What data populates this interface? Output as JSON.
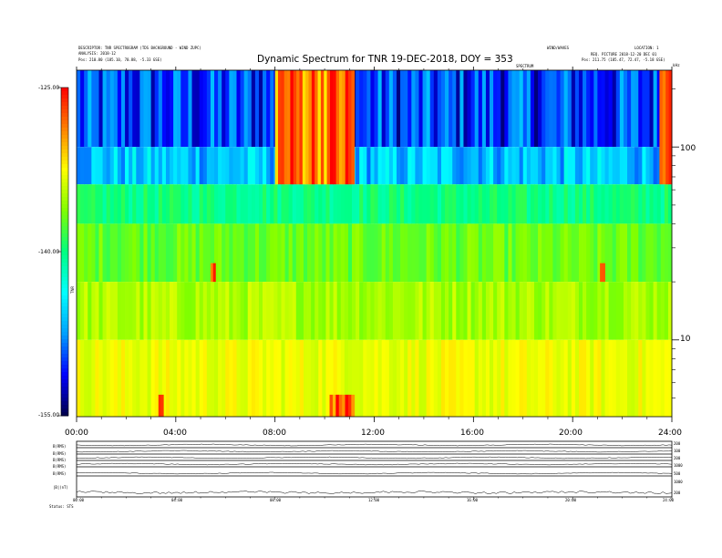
{
  "header": {
    "left_line1": "DESCRIPTOR: TNR SPECTROGRAM (TDS BACKGROUND - WIND ZUPC)",
    "left_line2": "ANALYSIS: 2018-12",
    "left_line3": "Pos: 210.80 (185.10, 70.88, -5.33 GSE)",
    "center_small_1": "WIND/WAVES",
    "center_small_2": "SPECTRUM",
    "right_line1": "LOCATION: 1",
    "right_line2": "REQ. PICTURE 2018-12-20 DEC 01",
    "right_line3": "Pos: 211.75 (185.47, 72.47, -5.18 GSE)"
  },
  "chart_data": {
    "type": "heatmap",
    "title": "Dynamic Spectrum for TNR 19-DEC-2018, DOY = 353",
    "x_ticks": [
      "00:00",
      "04:00",
      "08:00",
      "12:00",
      "16:00",
      "20:00",
      "24:00"
    ],
    "x_range_hours": [
      0,
      24
    ],
    "y_right_ticks": [
      "100",
      "10"
    ],
    "y_right_tick_values": [
      100,
      10
    ],
    "y_range_log": [
      4,
      250
    ],
    "y_right_top_label": "kHz",
    "colorbar": {
      "ticks": [
        "-125.00",
        "-140.00",
        "-155.00"
      ],
      "tick_values": [
        -125,
        -140,
        -155
      ],
      "range": [
        -155,
        -125
      ],
      "label": "TNR",
      "colors": [
        "#00004a",
        "#0000ff",
        "#00a0ff",
        "#00ffff",
        "#00ff80",
        "#80ff00",
        "#ffff00",
        "#ff8000",
        "#ff0000"
      ]
    },
    "bands": [
      {
        "f_top": 250,
        "f_bottom": 100,
        "level": -150,
        "noise": 4
      },
      {
        "f_top": 100,
        "f_bottom": 64,
        "level": -146,
        "noise": 3
      },
      {
        "f_top": 64,
        "f_bottom": 40,
        "level": -140,
        "noise": 1.5
      },
      {
        "f_top": 40,
        "f_bottom": 20,
        "level": -137,
        "noise": 1.5
      },
      {
        "f_top": 20,
        "f_bottom": 10,
        "level": -135,
        "noise": 1.5
      },
      {
        "f_top": 10,
        "f_bottom": 4,
        "level": -133,
        "noise": 1.2
      }
    ],
    "bursts": [
      {
        "t_start": 8.0,
        "t_end": 11.2,
        "f_top": 250,
        "f_bottom": 64,
        "level": -128
      },
      {
        "t_start": 23.5,
        "t_end": 24,
        "f_top": 250,
        "f_bottom": 64,
        "level": -128
      },
      {
        "t_start": 3.3,
        "t_end": 3.5,
        "f_top": 5.2,
        "f_bottom": 4,
        "level": -127
      },
      {
        "t_start": 10.2,
        "t_end": 11.2,
        "f_top": 5.2,
        "f_bottom": 4,
        "level": -127
      },
      {
        "t_start": 5.4,
        "t_end": 5.6,
        "f_top": 25,
        "f_bottom": 20,
        "level": -128
      },
      {
        "t_start": 21.1,
        "t_end": 21.3,
        "f_top": 25,
        "f_bottom": 20,
        "level": -128
      }
    ]
  },
  "lower_panel": {
    "x_ticks": [
      "00:00",
      "04:00",
      "08:00",
      "12:00",
      "16:00",
      "20:00",
      "24:00"
    ],
    "left_labels": [
      "B(RMS)",
      "B(RMS)",
      "B(RMS)",
      "B(RMS)",
      "B(RMS)",
      "|B|(nT)",
      "Status"
    ],
    "right_labels": [
      "200",
      "100",
      "200",
      "1000",
      "500",
      "1000",
      "200"
    ],
    "bottom_left": "Status: STS"
  }
}
